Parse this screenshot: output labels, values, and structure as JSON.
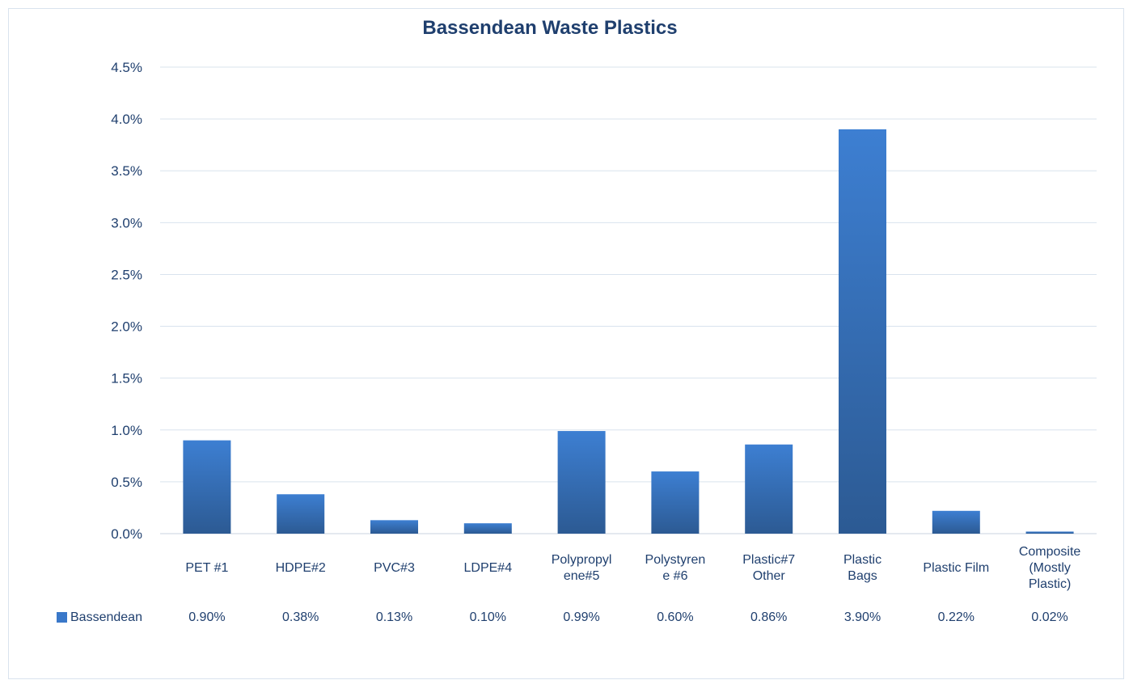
{
  "chart_data": {
    "type": "bar",
    "title": "Bassendean Waste Plastics",
    "xlabel": "",
    "ylabel": "",
    "ylim": [
      0,
      4.5
    ],
    "y_ticks": [
      "0.0%",
      "0.5%",
      "1.0%",
      "1.5%",
      "2.0%",
      "2.5%",
      "3.0%",
      "3.5%",
      "4.0%",
      "4.5%"
    ],
    "grid": true,
    "legend": "data-table-left",
    "categories": [
      [
        "PET #1"
      ],
      [
        "HDPE#2"
      ],
      [
        "PVC#3"
      ],
      [
        "LDPE#4"
      ],
      [
        "Polypropyl",
        "ene#5"
      ],
      [
        "Polystyren",
        "e #6"
      ],
      [
        "Plastic#7",
        "Other"
      ],
      [
        "Plastic",
        "Bags"
      ],
      [
        "Plastic Film"
      ],
      [
        "Composite",
        "(Mostly",
        "Plastic)"
      ]
    ],
    "series": [
      {
        "name": "Bassendean",
        "values": [
          0.9,
          0.38,
          0.13,
          0.1,
          0.99,
          0.6,
          0.86,
          3.9,
          0.22,
          0.02
        ],
        "labels": [
          "0.90%",
          "0.38%",
          "0.13%",
          "0.10%",
          "0.99%",
          "0.60%",
          "0.86%",
          "3.90%",
          "0.22%",
          "0.02%"
        ],
        "color": "#3a78c9"
      }
    ]
  },
  "colors": {
    "bar_top": "#3d7fd2",
    "bar_bottom": "#2c5a93",
    "text": "#1f3f6e",
    "grid": "#d9e3ee",
    "axis": "#c9d3df"
  }
}
